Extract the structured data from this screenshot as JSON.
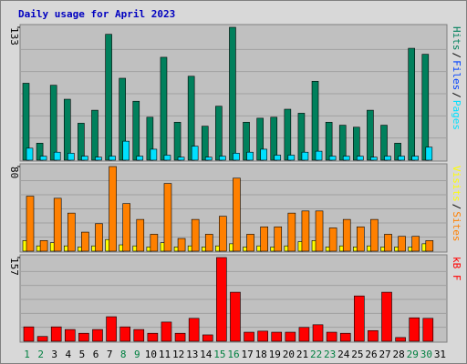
{
  "title": "Daily usage for April 2023",
  "separator": "/",
  "weekend_color": "#008040",
  "weekends": [
    0,
    1,
    7,
    8,
    14,
    15,
    21,
    22,
    28,
    29
  ],
  "chart_data": [
    {
      "type": "bar",
      "ylim": [
        0,
        133
      ],
      "yticks": [
        133
      ],
      "series": [
        {
          "name": "Hits",
          "color": "#00805c",
          "values": [
            77,
            17,
            75,
            61,
            37,
            50,
            126,
            82,
            59,
            43,
            103,
            38,
            84,
            34,
            54,
            133,
            38,
            42,
            43,
            51,
            47,
            79,
            38,
            35,
            33,
            50,
            35,
            17,
            112,
            106,
            0
          ]
        },
        {
          "name": "Files",
          "color": "#0040ff",
          "values": null
        },
        {
          "name": "Pages",
          "color": "#00e0ff",
          "values": [
            12,
            4,
            8,
            7,
            4,
            3,
            4,
            19,
            4,
            11,
            5,
            3,
            14,
            3,
            4,
            7,
            8,
            11,
            5,
            5,
            8,
            9,
            4,
            4,
            4,
            3,
            4,
            4,
            4,
            13,
            0
          ]
        }
      ]
    },
    {
      "type": "bar",
      "ylim": [
        0,
        80
      ],
      "yticks": [
        80
      ],
      "series": [
        {
          "name": "Visits",
          "color": "#ffff00",
          "values": [
            10,
            5,
            8,
            5,
            4,
            5,
            11,
            6,
            5,
            4,
            8,
            4,
            5,
            4,
            5,
            7,
            4,
            5,
            4,
            5,
            9,
            10,
            4,
            5,
            4,
            5,
            4,
            4,
            4,
            7,
            0
          ]
        },
        {
          "name": "Sites",
          "color": "#ff8000",
          "values": [
            52,
            10,
            50,
            36,
            18,
            26,
            80,
            45,
            30,
            16,
            64,
            12,
            30,
            16,
            33,
            69,
            16,
            23,
            23,
            36,
            38,
            38,
            22,
            30,
            23,
            30,
            16,
            14,
            14,
            10,
            0
          ]
        }
      ]
    },
    {
      "type": "bar",
      "ylim": [
        0,
        157
      ],
      "yticks": [
        157
      ],
      "categories": [
        "1",
        "2",
        "3",
        "4",
        "5",
        "6",
        "7",
        "8",
        "9",
        "10",
        "11",
        "12",
        "13",
        "14",
        "15",
        "16",
        "17",
        "18",
        "19",
        "20",
        "21",
        "22",
        "23",
        "24",
        "25",
        "26",
        "27",
        "28",
        "29",
        "30",
        "31"
      ],
      "series": [
        {
          "name": "kB F",
          "color": "#ff0000",
          "values": [
            27,
            9,
            27,
            22,
            15,
            22,
            46,
            27,
            22,
            15,
            36,
            15,
            43,
            12,
            157,
            92,
            17,
            19,
            17,
            17,
            26,
            31,
            17,
            15,
            85,
            20,
            92,
            7,
            44,
            43,
            0
          ]
        }
      ]
    }
  ]
}
